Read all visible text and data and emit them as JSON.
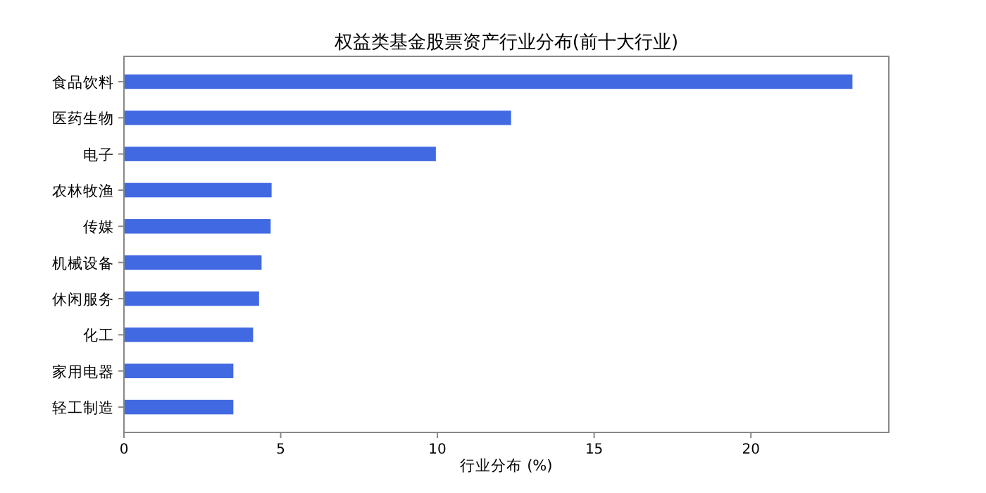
{
  "chart_data": {
    "type": "bar",
    "orientation": "horizontal",
    "title": "权益类基金股票资产行业分布(前十大行业)",
    "xlabel": "行业分布 (%)",
    "categories": [
      "食品饮料",
      "医药生物",
      "电子",
      "农林牧渔",
      "传媒",
      "机械设备",
      "休闲服务",
      "化工",
      "家用电器",
      "轻工制造"
    ],
    "values": [
      23.24,
      12.35,
      9.95,
      4.71,
      4.68,
      4.39,
      4.31,
      4.12,
      3.49,
      3.49
    ],
    "color": "#4169e1",
    "xlim": [
      0,
      24.4
    ],
    "xticks": [
      0,
      5,
      10,
      15,
      20
    ],
    "grid": false
  }
}
